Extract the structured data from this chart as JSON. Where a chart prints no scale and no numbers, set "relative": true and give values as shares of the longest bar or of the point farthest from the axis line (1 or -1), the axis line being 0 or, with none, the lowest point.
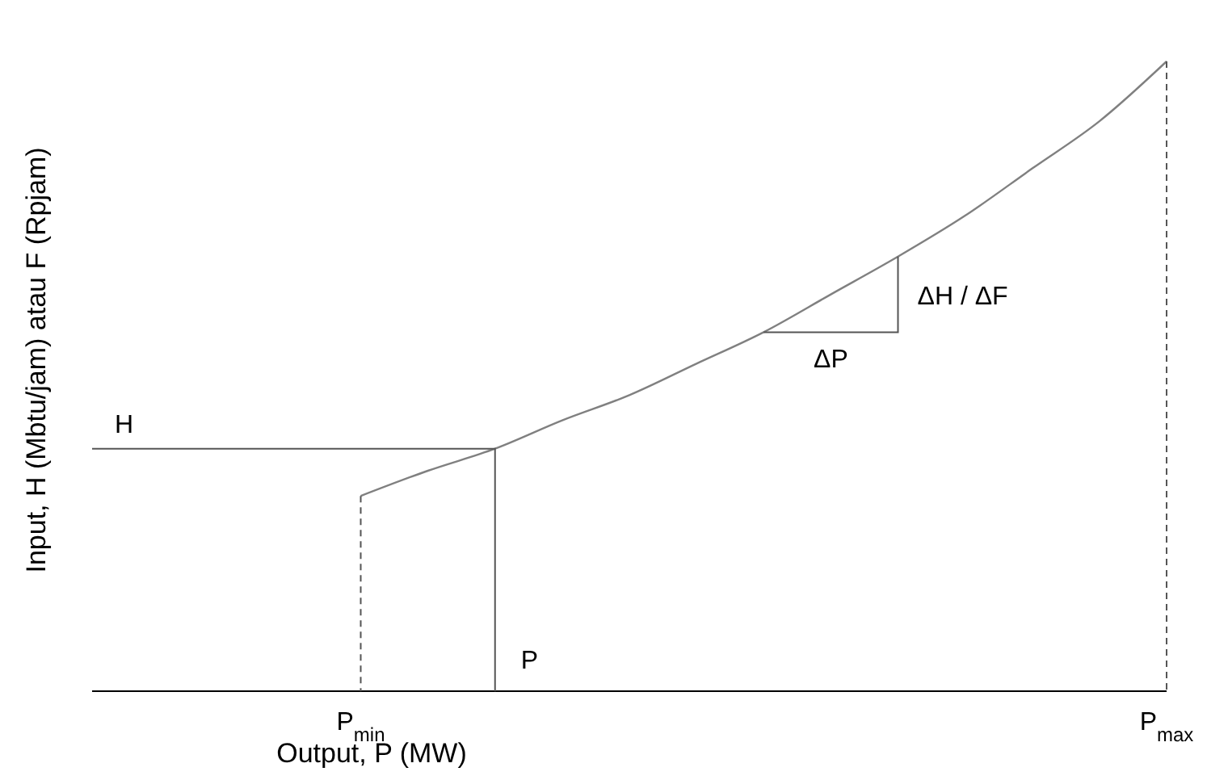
{
  "chart_data": {
    "type": "line",
    "relative": true,
    "xlabel": "Output, P (MW)",
    "ylabel": "Input, H (Mbtu/jam) atau F (Rpjam)",
    "categories": [
      null,
      null,
      null,
      null,
      "P$_{min}$",
      null,
      null,
      null,
      null,
      null,
      null,
      null,
      null,
      null,
      null,
      null,
      "P$_{max}$"
    ],
    "series": [
      {
        "color": "#808080",
        "values": [
          null,
          null,
          null,
          null,
          0.31,
          0.35,
          0.385,
          0.43,
          0.47,
          0.52,
          0.57,
          0.63,
          0.69,
          0.755,
          0.83,
          0.905,
          1
        ]
      }
    ],
    "annotations": [
      "H",
      "P",
      "ΔP",
      "ΔH / ΔF"
    ],
    "grid": false,
    "legend": false,
    "marker": "none",
    "line_style": "solid"
  }
}
